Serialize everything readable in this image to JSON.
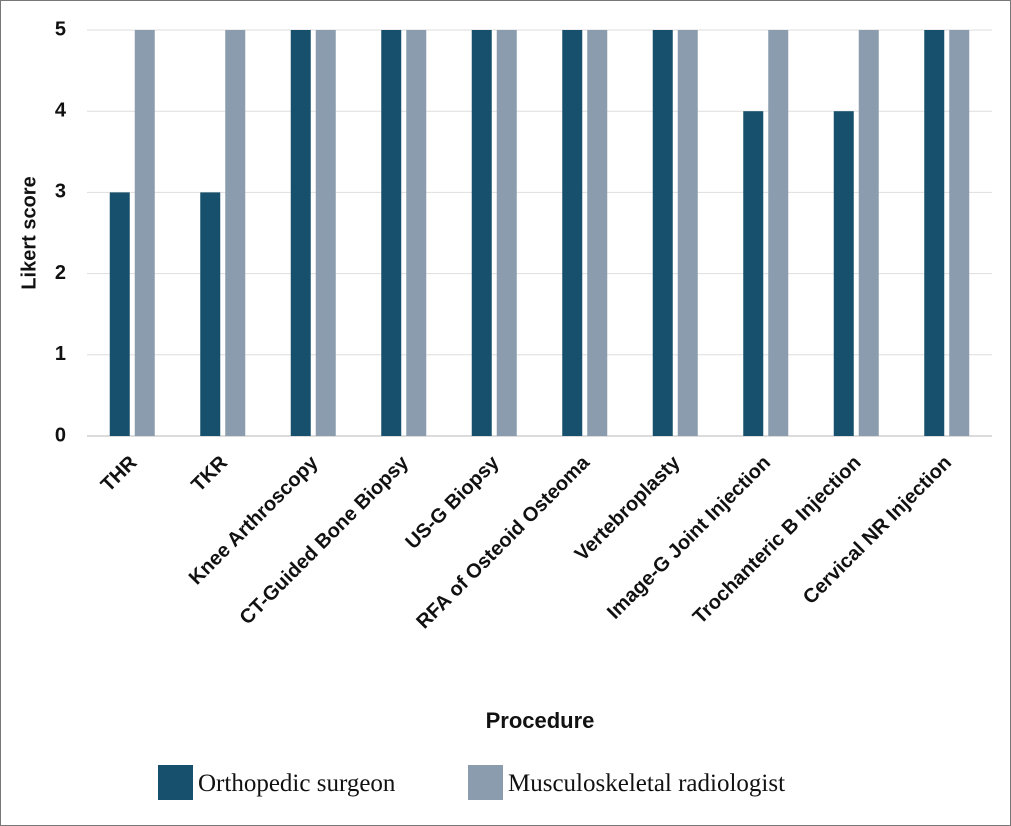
{
  "chart_data": {
    "type": "bar",
    "x_label": "Procedure",
    "y_label": "Likert score",
    "categories": [
      "THR",
      "TKR",
      "Knee Arthroscopy",
      "CT-Guided Bone Biopsy",
      "US-G Biopsy",
      "RFA of Osteoid Osteoma",
      "Vertebroplasty",
      "Image-G Joint Injection",
      "Trochanteric B Injection",
      "Cervical NR Injection"
    ],
    "series": [
      {
        "name": "Orthopedic surgeon",
        "color": "#17506c",
        "values": [
          3,
          3,
          5,
          5,
          5,
          5,
          5,
          4,
          4,
          5
        ]
      },
      {
        "name": "Musculoskeletal radiologist",
        "color": "#8a9cad",
        "values": [
          5,
          5,
          5,
          5,
          5,
          5,
          5,
          5,
          5,
          5
        ]
      }
    ],
    "ylim": [
      0,
      5
    ],
    "yticks": [
      0,
      1,
      2,
      3,
      4,
      5
    ],
    "grid": true,
    "legend": "bottom"
  }
}
